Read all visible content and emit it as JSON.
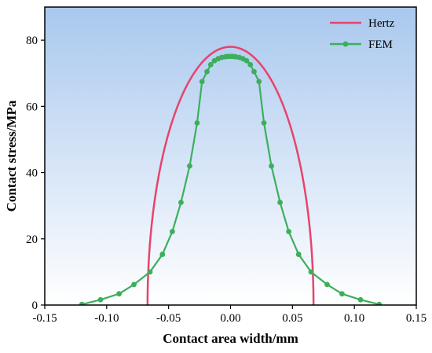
{
  "colors": {
    "hertz": "#e8436b",
    "fem": "#3caf5c",
    "bg_top": "#a9c8ee",
    "bg_bottom": "#ffffff",
    "axis": "#000000"
  },
  "chart_data": {
    "type": "line",
    "xlabel": "Contact area width/mm",
    "ylabel": "Contact stress/MPa",
    "xlim": [
      -0.15,
      0.15
    ],
    "ylim": [
      0,
      90
    ],
    "xticks": [
      "-0.15",
      "-0.10",
      "-0.05",
      "0.00",
      "0.05",
      "0.10",
      "0.15"
    ],
    "yticks": [
      "0",
      "20",
      "40",
      "60",
      "80"
    ],
    "legend_position": "top-right",
    "background": "vertical gradient, light blue at top to white at bottom",
    "series": [
      {
        "name": "Hertz",
        "color": "#e8436b",
        "marker": "none",
        "semi_width": 0.067,
        "peak": 78,
        "shape": "elliptical (Hertzian) pressure distribution",
        "x": [
          -0.067,
          -0.066,
          -0.065,
          -0.063,
          -0.06,
          -0.055,
          -0.05,
          -0.045,
          -0.04,
          -0.03,
          -0.02,
          -0.01,
          0.0,
          0.01,
          0.02,
          0.03,
          0.04,
          0.045,
          0.05,
          0.055,
          0.06,
          0.063,
          0.065,
          0.066,
          0.067
        ],
        "y": [
          0,
          13.4,
          18.9,
          26.3,
          34.7,
          44.6,
          51.9,
          57.8,
          62.6,
          69.7,
          74.4,
          77.1,
          78.0,
          77.1,
          74.4,
          69.7,
          62.6,
          57.8,
          51.9,
          44.6,
          34.7,
          26.3,
          18.9,
          13.4,
          0
        ]
      },
      {
        "name": "FEM",
        "color": "#3caf5c",
        "marker": "circle",
        "x": [
          -0.12,
          -0.105,
          -0.09,
          -0.078,
          -0.065,
          -0.055,
          -0.047,
          -0.04,
          -0.033,
          -0.027,
          -0.023,
          -0.019,
          -0.016,
          -0.013,
          -0.01,
          -0.007,
          -0.004,
          -0.002,
          0.0,
          0.002,
          0.004,
          0.007,
          0.01,
          0.013,
          0.016,
          0.019,
          0.023,
          0.027,
          0.033,
          0.04,
          0.047,
          0.055,
          0.065,
          0.078,
          0.09,
          0.105,
          0.12
        ],
        "y": [
          0.2,
          1.6,
          3.4,
          6.2,
          10.0,
          15.3,
          22.2,
          31.0,
          42.0,
          55.0,
          67.5,
          70.5,
          72.6,
          73.8,
          74.4,
          74.8,
          75.0,
          75.1,
          75.1,
          75.1,
          75.0,
          74.8,
          74.4,
          73.8,
          72.6,
          70.5,
          67.5,
          55.0,
          42.0,
          31.0,
          22.2,
          15.3,
          10.0,
          6.2,
          3.4,
          1.6,
          0.2
        ]
      }
    ]
  }
}
